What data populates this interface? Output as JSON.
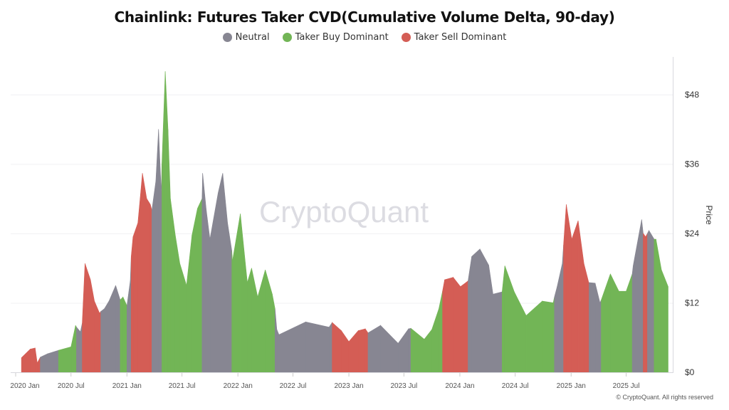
{
  "chart_data": {
    "type": "area",
    "title": "Chainlink: Futures Taker CVD(Cumulative Volume Delta, 90-day)",
    "ylabel": "Price",
    "ylim": [
      0,
      52
    ],
    "y_ticks": [
      "$0",
      "$12",
      "$24",
      "$36",
      "$48"
    ],
    "y_tick_values": [
      0,
      12,
      24,
      36,
      48
    ],
    "x_ticks": [
      "2020 Jan",
      "2020 Jul",
      "2021 Jan",
      "2021 Jul",
      "2022 Jan",
      "2022 Jul",
      "2023 Jan",
      "2023 Jul",
      "2024 Jan",
      "2024 Jul",
      "2025 Jan",
      "2025 Jul"
    ],
    "x_tick_dates": [
      "2020-01-01",
      "2020-07-01",
      "2021-01-01",
      "2021-07-01",
      "2022-01-01",
      "2022-07-01",
      "2023-01-01",
      "2023-07-01",
      "2024-01-01",
      "2024-07-01",
      "2025-01-01",
      "2025-07-01"
    ],
    "grid": true,
    "legend_position": "top",
    "legend": [
      {
        "key": "neutral",
        "name": "Neutral",
        "color": "#878692"
      },
      {
        "key": "buy",
        "name": "Taker Buy Dominant",
        "color": "#72b556"
      },
      {
        "key": "sell",
        "name": "Taker Sell Dominant",
        "color": "#d45d55"
      }
    ],
    "points_columns": [
      "date",
      "price",
      "regime"
    ],
    "points": [
      [
        "2020-01-20",
        2.5,
        "sell"
      ],
      [
        "2020-02-18",
        4.0,
        "sell"
      ],
      [
        "2020-03-05",
        4.2,
        "sell"
      ],
      [
        "2020-03-12",
        1.6,
        "sell"
      ],
      [
        "2020-03-22",
        2.6,
        "neutral"
      ],
      [
        "2020-04-15",
        3.2,
        "neutral"
      ],
      [
        "2020-05-21",
        3.8,
        "buy"
      ],
      [
        "2020-07-01",
        4.4,
        "buy"
      ],
      [
        "2020-07-16",
        8.1,
        "buy"
      ],
      [
        "2020-07-19",
        7.8,
        "neutral"
      ],
      [
        "2020-08-01",
        7.0,
        "neutral"
      ],
      [
        "2020-08-07",
        8.5,
        "sell"
      ],
      [
        "2020-08-16",
        18.8,
        "sell"
      ],
      [
        "2020-09-03",
        16,
        "sell"
      ],
      [
        "2020-09-16",
        12.3,
        "sell"
      ],
      [
        "2020-10-03",
        10.2,
        "sell"
      ],
      [
        "2020-10-07",
        10.5,
        "neutral"
      ],
      [
        "2020-10-19",
        11,
        "neutral"
      ],
      [
        "2020-11-03",
        12.3,
        "neutral"
      ],
      [
        "2020-11-25",
        15,
        "neutral"
      ],
      [
        "2020-12-10",
        12.5,
        "buy"
      ],
      [
        "2020-12-19",
        13,
        "buy"
      ],
      [
        "2021-01-01",
        11.5,
        "neutral"
      ],
      [
        "2021-01-12",
        15.8,
        "neutral"
      ],
      [
        "2021-01-15",
        20,
        "sell"
      ],
      [
        "2021-01-21",
        23.4,
        "sell"
      ],
      [
        "2021-02-06",
        25.8,
        "sell"
      ],
      [
        "2021-02-21",
        34.4,
        "sell"
      ],
      [
        "2021-03-07",
        30,
        "sell"
      ],
      [
        "2021-03-19",
        29,
        "sell"
      ],
      [
        "2021-03-24",
        28,
        "neutral"
      ],
      [
        "2021-04-06",
        33,
        "neutral"
      ],
      [
        "2021-04-15",
        42,
        "neutral"
      ],
      [
        "2021-04-24",
        31,
        "neutral"
      ],
      [
        "2021-04-26",
        36,
        "buy"
      ],
      [
        "2021-05-07",
        52,
        "buy"
      ],
      [
        "2021-05-16",
        42,
        "buy"
      ],
      [
        "2021-05-24",
        30,
        "buy"
      ],
      [
        "2021-06-09",
        23.7,
        "buy"
      ],
      [
        "2021-06-24",
        18.8,
        "buy"
      ],
      [
        "2021-07-16",
        15,
        "buy"
      ],
      [
        "2021-08-03",
        23.7,
        "buy"
      ],
      [
        "2021-08-21",
        28.3,
        "buy"
      ],
      [
        "2021-09-05",
        30,
        "neutral"
      ],
      [
        "2021-09-07",
        34.4,
        "neutral"
      ],
      [
        "2021-09-19",
        28,
        "neutral"
      ],
      [
        "2021-10-01",
        23,
        "neutral"
      ],
      [
        "2021-10-28",
        31,
        "neutral"
      ],
      [
        "2021-11-12",
        34.4,
        "neutral"
      ],
      [
        "2021-11-28",
        25.8,
        "neutral"
      ],
      [
        "2021-12-12",
        21,
        "buy"
      ],
      [
        "2021-12-14",
        19.2,
        "buy"
      ],
      [
        "2022-01-09",
        27.4,
        "buy"
      ],
      [
        "2022-02-01",
        15.5,
        "buy"
      ],
      [
        "2022-02-15",
        18,
        "buy"
      ],
      [
        "2022-03-07",
        13,
        "buy"
      ],
      [
        "2022-04-01",
        17.7,
        "buy"
      ],
      [
        "2022-04-24",
        13.5,
        "buy"
      ],
      [
        "2022-05-03",
        11,
        "neutral"
      ],
      [
        "2022-05-09",
        7.4,
        "neutral"
      ],
      [
        "2022-05-16",
        6.5,
        "neutral"
      ],
      [
        "2022-08-12",
        8.7,
        "neutral"
      ],
      [
        "2022-10-28",
        7.8,
        "neutral"
      ],
      [
        "2022-11-07",
        8.6,
        "sell"
      ],
      [
        "2022-12-07",
        7.2,
        "sell"
      ],
      [
        "2023-01-01",
        5.3,
        "sell"
      ],
      [
        "2023-02-01",
        7.2,
        "sell"
      ],
      [
        "2023-02-24",
        7.5,
        "sell"
      ],
      [
        "2023-03-05",
        6.8,
        "neutral"
      ],
      [
        "2023-04-15",
        8.1,
        "neutral"
      ],
      [
        "2023-06-12",
        5.0,
        "neutral"
      ],
      [
        "2023-07-16",
        7.5,
        "neutral"
      ],
      [
        "2023-07-24",
        7.6,
        "buy"
      ],
      [
        "2023-09-06",
        5.7,
        "buy"
      ],
      [
        "2023-10-01",
        7.4,
        "buy"
      ],
      [
        "2023-10-24",
        11,
        "buy"
      ],
      [
        "2023-11-05",
        14,
        "sell"
      ],
      [
        "2023-11-12",
        16,
        "sell"
      ],
      [
        "2023-12-10",
        16.4,
        "sell"
      ],
      [
        "2024-01-03",
        14.8,
        "sell"
      ],
      [
        "2024-01-21",
        15.5,
        "sell"
      ],
      [
        "2024-01-28",
        15.8,
        "neutral"
      ],
      [
        "2024-02-09",
        20,
        "neutral"
      ],
      [
        "2024-03-07",
        21.3,
        "neutral"
      ],
      [
        "2024-04-05",
        18.5,
        "neutral"
      ],
      [
        "2024-04-19",
        13.5,
        "neutral"
      ],
      [
        "2024-05-19",
        13.9,
        "buy"
      ],
      [
        "2024-05-28",
        18.4,
        "buy"
      ],
      [
        "2024-06-28",
        13.9,
        "buy"
      ],
      [
        "2024-08-06",
        9.8,
        "buy"
      ],
      [
        "2024-09-28",
        12.3,
        "buy"
      ],
      [
        "2024-11-03",
        12,
        "buy"
      ],
      [
        "2024-11-07",
        13,
        "neutral"
      ],
      [
        "2024-11-16",
        14.8,
        "neutral"
      ],
      [
        "2024-12-03",
        18.8,
        "neutral"
      ],
      [
        "2024-12-07",
        22,
        "sell"
      ],
      [
        "2024-12-16",
        29,
        "sell"
      ],
      [
        "2025-01-03",
        23,
        "sell"
      ],
      [
        "2025-01-24",
        26.2,
        "sell"
      ],
      [
        "2025-02-12",
        18.8,
        "sell"
      ],
      [
        "2025-02-28",
        15.5,
        "sell"
      ],
      [
        "2025-03-01",
        15.5,
        "neutral"
      ],
      [
        "2025-03-21",
        15.4,
        "neutral"
      ],
      [
        "2025-04-06",
        12,
        "neutral"
      ],
      [
        "2025-04-10",
        12.5,
        "buy"
      ],
      [
        "2025-05-10",
        17,
        "buy"
      ],
      [
        "2025-06-07",
        14,
        "buy"
      ],
      [
        "2025-07-01",
        14,
        "buy"
      ],
      [
        "2025-07-21",
        17,
        "neutral"
      ],
      [
        "2025-07-24",
        18.4,
        "neutral"
      ],
      [
        "2025-08-21",
        26.4,
        "neutral"
      ],
      [
        "2025-08-26",
        24,
        "sell"
      ],
      [
        "2025-09-03",
        23.4,
        "sell"
      ],
      [
        "2025-09-09",
        24,
        "neutral"
      ],
      [
        "2025-09-14",
        24.5,
        "neutral"
      ],
      [
        "2025-10-01",
        23,
        "buy"
      ],
      [
        "2025-10-07",
        23,
        "buy"
      ],
      [
        "2025-10-25",
        17.7,
        "buy"
      ],
      [
        "2025-11-16",
        14.8,
        "buy"
      ]
    ]
  },
  "watermark": "CryptoQuant",
  "copyright": "© CryptoQuant. All rights reserved"
}
